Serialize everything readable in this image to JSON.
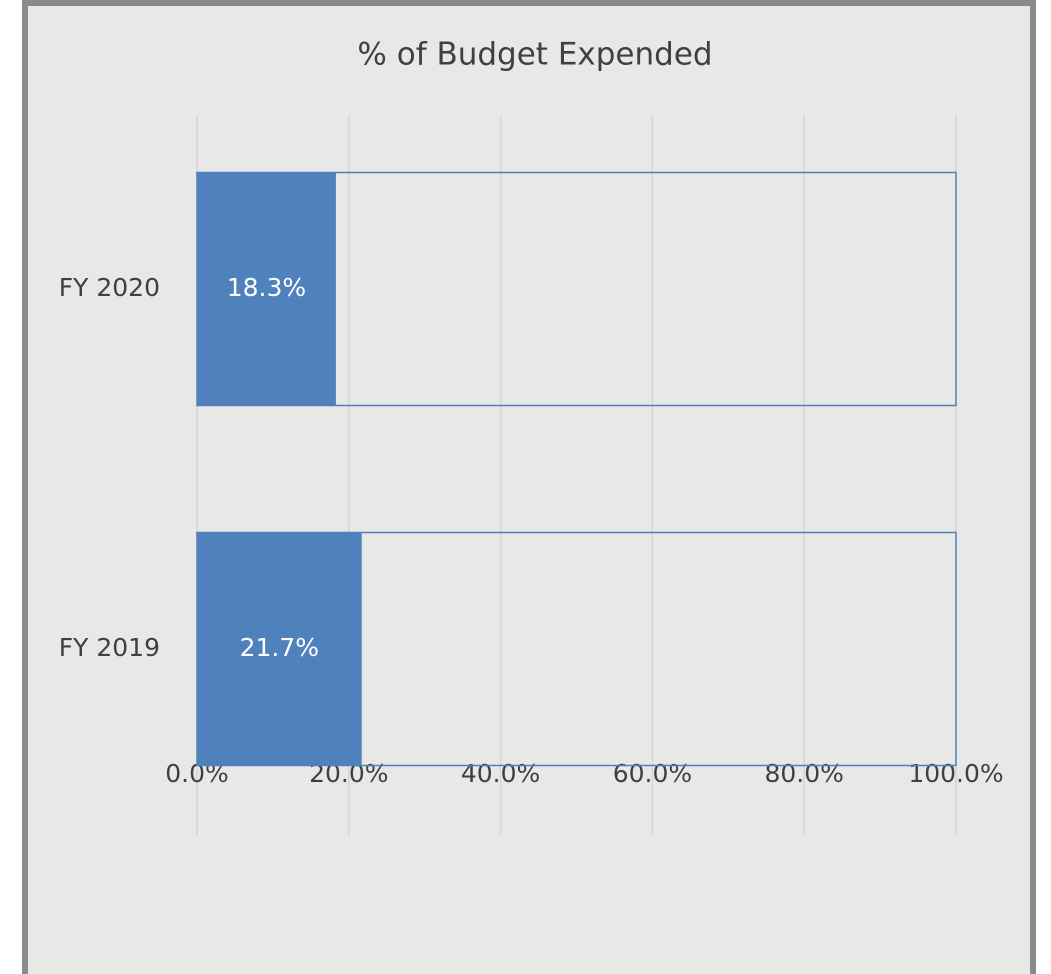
{
  "chart_data": {
    "type": "hbar",
    "title": "% of Budget Expended",
    "categories": [
      "FY 2020",
      "FY 2019"
    ],
    "series": [
      {
        "values": [
          18.3,
          21.7
        ],
        "value_labels": [
          "18.3%",
          "21.7%"
        ],
        "color": "#4f81bd"
      },
      {
        "values": [
          100,
          100
        ],
        "color": "none",
        "edge_color": "#4f81bd"
      }
    ],
    "xlim": [
      0,
      100
    ],
    "xticks": [
      {
        "value": 0,
        "label": "0.0%"
      },
      {
        "value": 20,
        "label": "20.0%"
      },
      {
        "value": 40,
        "label": "40.0%"
      },
      {
        "value": 60,
        "label": "60.0%"
      },
      {
        "value": 80,
        "label": "80.0%"
      },
      {
        "value": 100,
        "label": "100.0%"
      }
    ],
    "grid": true
  }
}
